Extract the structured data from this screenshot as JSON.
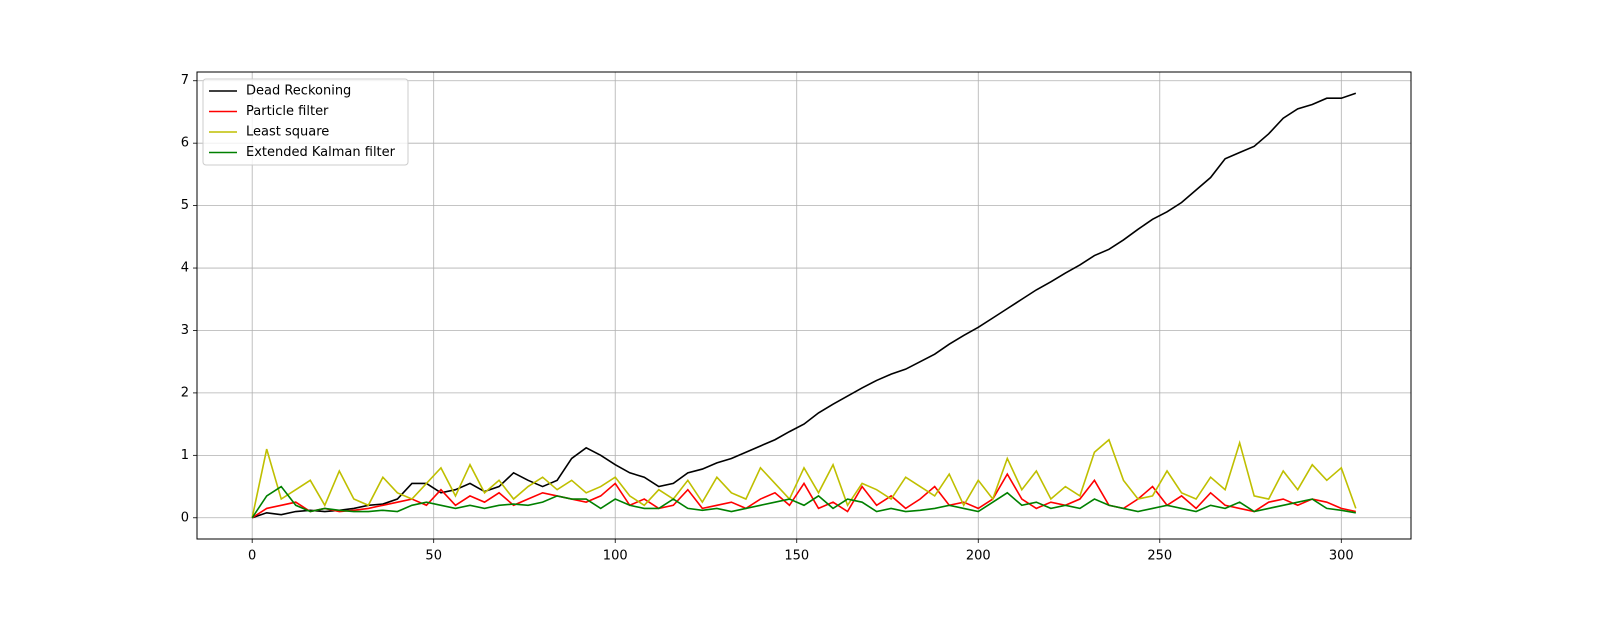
{
  "chart_data": {
    "type": "line",
    "x": [
      0,
      4,
      8,
      12,
      16,
      20,
      24,
      28,
      32,
      36,
      40,
      44,
      48,
      52,
      56,
      60,
      64,
      68,
      72,
      76,
      80,
      84,
      88,
      92,
      96,
      100,
      104,
      108,
      112,
      116,
      120,
      124,
      128,
      132,
      136,
      140,
      144,
      148,
      152,
      156,
      160,
      164,
      168,
      172,
      176,
      180,
      184,
      188,
      192,
      196,
      200,
      204,
      208,
      212,
      216,
      220,
      224,
      228,
      232,
      236,
      240,
      244,
      248,
      252,
      256,
      260,
      264,
      268,
      272,
      276,
      280,
      284,
      288,
      292,
      296,
      300,
      304
    ],
    "series": [
      {
        "name": "Dead Reckoning",
        "color": "#000000",
        "values": [
          0,
          0.08,
          0.05,
          0.1,
          0.12,
          0.1,
          0.12,
          0.15,
          0.2,
          0.22,
          0.3,
          0.55,
          0.55,
          0.4,
          0.45,
          0.55,
          0.42,
          0.5,
          0.72,
          0.6,
          0.5,
          0.6,
          0.95,
          1.12,
          1.0,
          0.85,
          0.72,
          0.65,
          0.5,
          0.55,
          0.72,
          0.78,
          0.88,
          0.95,
          1.05,
          1.15,
          1.25,
          1.38,
          1.5,
          1.68,
          1.82,
          1.95,
          2.08,
          2.2,
          2.3,
          2.38,
          2.5,
          2.62,
          2.78,
          2.92,
          3.05,
          3.2,
          3.35,
          3.5,
          3.65,
          3.78,
          3.92,
          4.05,
          4.2,
          4.3,
          4.45,
          4.62,
          4.78,
          4.9,
          5.05,
          5.25,
          5.45,
          5.75,
          5.85,
          5.95,
          6.15,
          6.4,
          6.55,
          6.62,
          6.72,
          6.72,
          6.8
        ]
      },
      {
        "name": "Particle filter",
        "color": "#ff0000",
        "values": [
          0,
          0.15,
          0.2,
          0.25,
          0.1,
          0.15,
          0.1,
          0.12,
          0.15,
          0.2,
          0.25,
          0.3,
          0.2,
          0.45,
          0.2,
          0.35,
          0.25,
          0.4,
          0.2,
          0.3,
          0.4,
          0.35,
          0.3,
          0.25,
          0.35,
          0.55,
          0.2,
          0.3,
          0.15,
          0.2,
          0.45,
          0.15,
          0.2,
          0.25,
          0.15,
          0.3,
          0.4,
          0.2,
          0.55,
          0.15,
          0.25,
          0.1,
          0.5,
          0.2,
          0.35,
          0.15,
          0.3,
          0.5,
          0.2,
          0.25,
          0.15,
          0.3,
          0.7,
          0.3,
          0.15,
          0.25,
          0.2,
          0.3,
          0.6,
          0.2,
          0.15,
          0.3,
          0.5,
          0.2,
          0.35,
          0.15,
          0.4,
          0.2,
          0.15,
          0.1,
          0.25,
          0.3,
          0.2,
          0.3,
          0.25,
          0.15,
          0.1
        ]
      },
      {
        "name": "Least square",
        "color": "#bfbf00",
        "values": [
          0,
          1.1,
          0.3,
          0.45,
          0.6,
          0.2,
          0.75,
          0.3,
          0.2,
          0.65,
          0.4,
          0.3,
          0.55,
          0.8,
          0.35,
          0.85,
          0.4,
          0.6,
          0.3,
          0.5,
          0.65,
          0.45,
          0.6,
          0.4,
          0.5,
          0.65,
          0.35,
          0.2,
          0.45,
          0.3,
          0.6,
          0.25,
          0.65,
          0.4,
          0.3,
          0.8,
          0.55,
          0.3,
          0.8,
          0.4,
          0.85,
          0.2,
          0.55,
          0.45,
          0.3,
          0.65,
          0.5,
          0.35,
          0.7,
          0.2,
          0.6,
          0.3,
          0.95,
          0.45,
          0.75,
          0.3,
          0.5,
          0.35,
          1.05,
          1.25,
          0.6,
          0.3,
          0.35,
          0.75,
          0.4,
          0.3,
          0.65,
          0.45,
          1.2,
          0.35,
          0.3,
          0.75,
          0.45,
          0.85,
          0.6,
          0.8,
          0.15
        ]
      },
      {
        "name": "Extended Kalman filter",
        "color": "#008000",
        "values": [
          0,
          0.35,
          0.5,
          0.2,
          0.1,
          0.15,
          0.12,
          0.1,
          0.1,
          0.12,
          0.1,
          0.2,
          0.25,
          0.2,
          0.15,
          0.2,
          0.15,
          0.2,
          0.22,
          0.2,
          0.25,
          0.35,
          0.3,
          0.3,
          0.15,
          0.3,
          0.2,
          0.15,
          0.15,
          0.3,
          0.15,
          0.12,
          0.15,
          0.1,
          0.15,
          0.2,
          0.25,
          0.3,
          0.2,
          0.35,
          0.15,
          0.3,
          0.25,
          0.1,
          0.15,
          0.1,
          0.12,
          0.15,
          0.2,
          0.15,
          0.1,
          0.25,
          0.4,
          0.2,
          0.25,
          0.15,
          0.2,
          0.15,
          0.3,
          0.2,
          0.15,
          0.1,
          0.15,
          0.2,
          0.15,
          0.1,
          0.2,
          0.15,
          0.25,
          0.1,
          0.15,
          0.2,
          0.25,
          0.3,
          0.15,
          0.12,
          0.08
        ]
      }
    ],
    "xlim": [
      -15.2,
      319.2
    ],
    "ylim": [
      -0.34,
      7.14
    ],
    "xticks": [
      0,
      50,
      100,
      150,
      200,
      250,
      300
    ],
    "yticks": [
      0,
      1,
      2,
      3,
      4,
      5,
      6,
      7
    ],
    "grid": true,
    "legend": "upper-left"
  }
}
